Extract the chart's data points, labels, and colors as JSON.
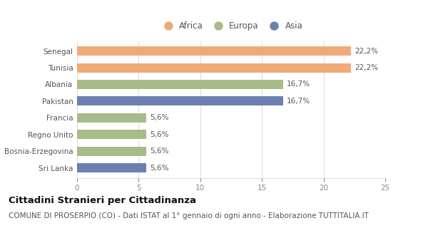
{
  "categories": [
    "Sri Lanka",
    "Bosnia-Erzegovina",
    "Regno Unito",
    "Francia",
    "Pakistan",
    "Albania",
    "Tunisia",
    "Senegal"
  ],
  "values": [
    5.6,
    5.6,
    5.6,
    5.6,
    16.7,
    16.7,
    22.2,
    22.2
  ],
  "colors": [
    "#6b80b0",
    "#a8bc8a",
    "#a8bc8a",
    "#a8bc8a",
    "#6b80b0",
    "#a8bc8a",
    "#f0aa78",
    "#f0aa78"
  ],
  "labels": [
    "5,6%",
    "5,6%",
    "5,6%",
    "5,6%",
    "16,7%",
    "16,7%",
    "22,2%",
    "22,2%"
  ],
  "legend": [
    {
      "label": "Africa",
      "color": "#f0aa78"
    },
    {
      "label": "Europa",
      "color": "#a8bc8a"
    },
    {
      "label": "Asia",
      "color": "#6b80b0"
    }
  ],
  "xlim": [
    0,
    25
  ],
  "xticks": [
    0,
    5,
    10,
    15,
    20,
    25
  ],
  "title": "Cittadini Stranieri per Cittadinanza",
  "subtitle": "COMUNE DI PROSERPIO (CO) - Dati ISTAT al 1° gennaio di ogni anno - Elaborazione TUTTITALIA.IT",
  "title_fontsize": 9.5,
  "subtitle_fontsize": 7.5,
  "label_fontsize": 7.5,
  "tick_fontsize": 7.5,
  "legend_fontsize": 8.5,
  "bar_height": 0.55,
  "background_color": "#ffffff",
  "grid_color": "#dddddd"
}
